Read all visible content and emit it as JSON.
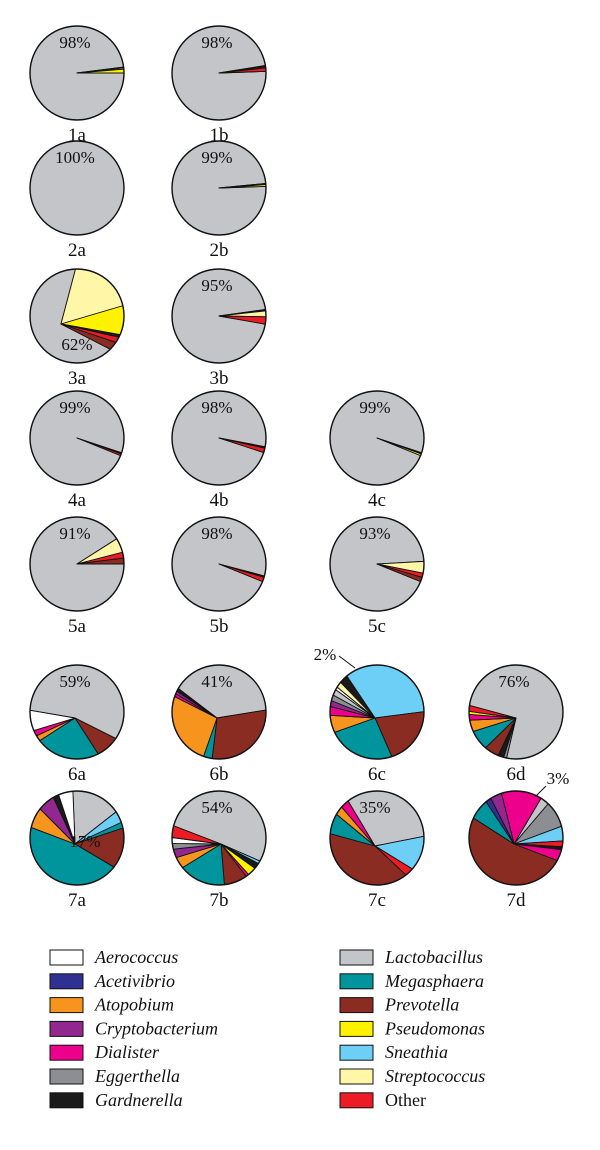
{
  "chart_data": {
    "type": "pie",
    "species": [
      {
        "key": "aer",
        "name": "Aerococcus",
        "color": "#ffffff",
        "italic": true
      },
      {
        "key": "ace",
        "name": "Acetivibrio",
        "color": "#2e3192",
        "italic": true
      },
      {
        "key": "ato",
        "name": "Atopobium",
        "color": "#f7941d",
        "italic": true
      },
      {
        "key": "cry",
        "name": "Cryptobacterium",
        "color": "#92278f",
        "italic": true
      },
      {
        "key": "dia",
        "name": "Dialister",
        "color": "#ec008c",
        "italic": true
      },
      {
        "key": "egg",
        "name": "Eggerthella",
        "color": "#8c8e91",
        "italic": true
      },
      {
        "key": "gar",
        "name": "Gardnerella",
        "color": "#1a1a1a",
        "italic": true
      },
      {
        "key": "lac",
        "name": "Lactobacillus",
        "color": "#c4c5c9",
        "italic": true
      },
      {
        "key": "meg",
        "name": "Megasphaera",
        "color": "#00959c",
        "italic": true
      },
      {
        "key": "pre",
        "name": "Prevotella",
        "color": "#8b2c23",
        "italic": true
      },
      {
        "key": "pse",
        "name": "Pseudomonas",
        "color": "#fff200",
        "italic": true
      },
      {
        "key": "sne",
        "name": "Sneathia",
        "color": "#6dcff6",
        "italic": true
      },
      {
        "key": "str",
        "name": "Streptococcus",
        "color": "#fff6a8",
        "italic": true
      },
      {
        "key": "oth",
        "name": "Other",
        "color": "#ed1c24",
        "italic": false
      }
    ],
    "pies": [
      {
        "id": "1a",
        "label": "1a",
        "pct_label": "98%",
        "slices": [
          [
            "lac",
            98
          ],
          [
            "gar",
            0.3
          ],
          [
            "str",
            0.4
          ],
          [
            "pse",
            1.3
          ]
        ]
      },
      {
        "id": "1b",
        "label": "1b",
        "pct_label": "98%",
        "slices": [
          [
            "lac",
            98
          ],
          [
            "gar",
            0.8
          ],
          [
            "oth",
            1.2
          ]
        ]
      },
      {
        "id": "2a",
        "label": "2a",
        "pct_label": "100%",
        "slices": [
          [
            "lac",
            100
          ]
        ]
      },
      {
        "id": "2b",
        "label": "2b",
        "pct_label": "99%",
        "slices": [
          [
            "lac",
            99
          ],
          [
            "gar",
            0.4
          ],
          [
            "pse",
            0.6
          ]
        ]
      },
      {
        "id": "3a",
        "label": "3a",
        "pct_label": "62%",
        "slices": [
          [
            "lac",
            62
          ],
          [
            "str",
            22
          ],
          [
            "pse",
            10
          ],
          [
            "gar",
            1
          ],
          [
            "oth",
            2
          ],
          [
            "pre",
            3
          ]
        ]
      },
      {
        "id": "3b",
        "label": "3b",
        "pct_label": "95%",
        "slices": [
          [
            "lac",
            95
          ],
          [
            "gar",
            0.5
          ],
          [
            "str",
            2
          ],
          [
            "oth",
            2.5
          ]
        ]
      },
      {
        "id": "4a",
        "label": "4a",
        "pct_label": "99%",
        "slices": [
          [
            "lac",
            99
          ],
          [
            "gar",
            0.4
          ],
          [
            "oth",
            0.6
          ]
        ]
      },
      {
        "id": "4b",
        "label": "4b",
        "pct_label": "98%",
        "slices": [
          [
            "lac",
            98
          ],
          [
            "gar",
            0.5
          ],
          [
            "oth",
            1.5
          ]
        ]
      },
      {
        "id": "4c",
        "label": "4c",
        "pct_label": "99%",
        "slices": [
          [
            "lac",
            99
          ],
          [
            "gar",
            0.4
          ],
          [
            "pse",
            0.6
          ]
        ]
      },
      {
        "id": "5a",
        "label": "5a",
        "pct_label": "91%",
        "slices": [
          [
            "lac",
            91
          ],
          [
            "str",
            5
          ],
          [
            "oth",
            2
          ],
          [
            "pre",
            2
          ]
        ]
      },
      {
        "id": "5b",
        "label": "5b",
        "pct_label": "98%",
        "slices": [
          [
            "lac",
            98
          ],
          [
            "gar",
            0.5
          ],
          [
            "oth",
            1.5
          ]
        ]
      },
      {
        "id": "5c",
        "label": "5c",
        "pct_label": "93%",
        "slices": [
          [
            "lac",
            93
          ],
          [
            "str",
            4
          ],
          [
            "oth",
            1.5
          ],
          [
            "pre",
            1.5
          ]
        ]
      },
      {
        "id": "6a",
        "label": "6a",
        "pct_label": "59%",
        "slices": [
          [
            "lac",
            59
          ],
          [
            "pre",
            8
          ],
          [
            "meg",
            22
          ],
          [
            "ato",
            2
          ],
          [
            "dia",
            2
          ],
          [
            "aer",
            7
          ]
        ]
      },
      {
        "id": "6b",
        "label": "6b",
        "pct_label": "41%",
        "slices": [
          [
            "lac",
            41
          ],
          [
            "pre",
            28
          ],
          [
            "meg",
            3
          ],
          [
            "ato",
            25
          ],
          [
            "dia",
            1
          ],
          [
            "cry",
            1
          ],
          [
            "gar",
            1
          ]
        ]
      },
      {
        "id": "6c",
        "label": "6c",
        "pct_label": "2%",
        "slices": [
          [
            "sne",
            36
          ],
          [
            "pre",
            20
          ],
          [
            "meg",
            23
          ],
          [
            "ato",
            6
          ],
          [
            "dia",
            3
          ],
          [
            "cry",
            2
          ],
          [
            "egg",
            2
          ],
          [
            "lac",
            2
          ],
          [
            "aer",
            1
          ],
          [
            "str",
            2
          ],
          [
            "gar",
            3
          ]
        ]
      },
      {
        "id": "6d",
        "label": "6d",
        "pct_label": "76%",
        "slices": [
          [
            "lac",
            76
          ],
          [
            "egg",
            1
          ],
          [
            "gar",
            2
          ],
          [
            "pre",
            5
          ],
          [
            "meg",
            7
          ],
          [
            "ato",
            4
          ],
          [
            "dia",
            2
          ],
          [
            "pse",
            1
          ],
          [
            "oth",
            2
          ]
        ]
      },
      {
        "id": "7a",
        "label": "7a",
        "pct_label": "17%",
        "slices": [
          [
            "lac",
            17
          ],
          [
            "sne",
            4
          ],
          [
            "meg",
            2
          ],
          [
            "pre",
            14
          ],
          [
            "meg",
            43
          ],
          [
            "ato",
            7
          ],
          [
            "cry",
            6
          ],
          [
            "gar",
            2
          ],
          [
            "aer",
            5
          ]
        ]
      },
      {
        "id": "7b",
        "label": "7b",
        "pct_label": "54%",
        "slices": [
          [
            "lac",
            54
          ],
          [
            "sne",
            1
          ],
          [
            "gar",
            2
          ],
          [
            "pse",
            3
          ],
          [
            "dia",
            1
          ],
          [
            "pre",
            8
          ],
          [
            "meg",
            16
          ],
          [
            "ato",
            4
          ],
          [
            "cry",
            3
          ],
          [
            "egg",
            2
          ],
          [
            "aer",
            2
          ],
          [
            "oth",
            4
          ]
        ]
      },
      {
        "id": "7c",
        "label": "7c",
        "pct_label": "35%",
        "slices": [
          [
            "lac",
            35
          ],
          [
            "sne",
            12
          ],
          [
            "oth",
            3
          ],
          [
            "pre",
            37
          ],
          [
            "meg",
            7
          ],
          [
            "ato",
            3
          ],
          [
            "dia",
            3
          ]
        ]
      },
      {
        "id": "7d",
        "label": "7d",
        "pct_label": "3%",
        "slices": [
          [
            "dia",
            14
          ],
          [
            "lac",
            3
          ],
          [
            "egg",
            9
          ],
          [
            "sne",
            5
          ],
          [
            "oth",
            2
          ],
          [
            "gar",
            1
          ],
          [
            "dia",
            4
          ],
          [
            "pre",
            49
          ],
          [
            "meg",
            7
          ],
          [
            "ace",
            2
          ],
          [
            "cry",
            4
          ]
        ]
      }
    ]
  }
}
